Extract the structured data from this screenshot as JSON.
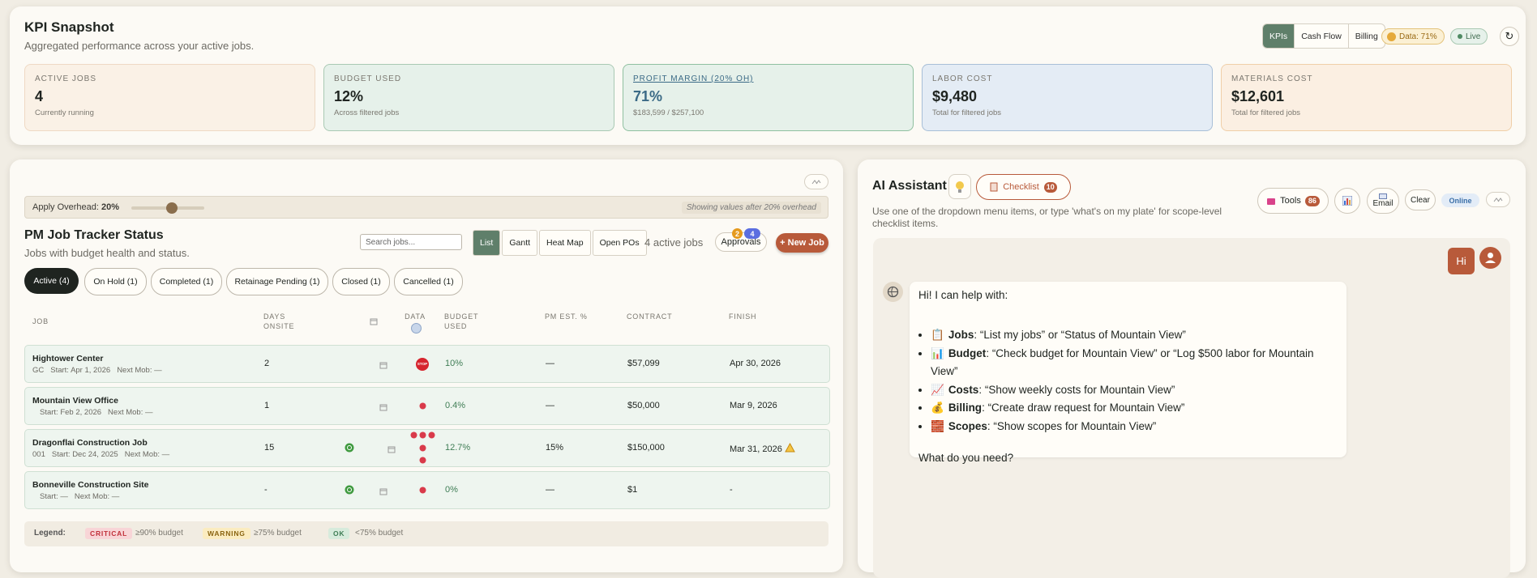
{
  "kpi_panel": {
    "title": "KPI Snapshot",
    "subtitle": "Aggregated performance across your active jobs.",
    "tabs": [
      "KPIs",
      "Cash Flow",
      "Billing"
    ],
    "data_badge": "Data: 71%",
    "live_badge": "Live",
    "refresh": "↻",
    "cards": [
      {
        "label": "ACTIVE JOBS",
        "value": "4",
        "note": "Currently running"
      },
      {
        "label": "BUDGET USED",
        "value": "12%",
        "note": "Across filtered jobs"
      },
      {
        "label": "PROFIT MARGIN (20% OH)",
        "value": "71%",
        "note": "$183,599 / $257,100"
      },
      {
        "label": "LABOR COST",
        "value": "$9,480",
        "note": "Total for filtered jobs"
      },
      {
        "label": "MATERIALS COST",
        "value": "$12,601",
        "note": "Total for filtered jobs"
      }
    ]
  },
  "job_tracker": {
    "overhead_label": "Apply Overhead:",
    "overhead_value": "20%",
    "overhead_note": "Showing values after 20% overhead",
    "title": "PM Job Tracker Status",
    "subtitle": "Jobs with budget health and status.",
    "search_placeholder": "Search jobs...",
    "views": [
      "List",
      "Gantt",
      "Heat Map",
      "Open POs"
    ],
    "active_count": "4 active jobs",
    "approvals": {
      "label": "Approvals",
      "badges": [
        "2",
        "4"
      ]
    },
    "new_job": "+ New Job",
    "filters": [
      "Active (4)",
      "On Hold (1)",
      "Completed (1)",
      "Retainage Pending (1)",
      "Closed (1)",
      "Cancelled (1)"
    ],
    "columns": [
      "JOB",
      "DAYS ONSITE",
      "DATA",
      "BUDGET USED",
      "PM EST. %",
      "CONTRACT",
      "FINISH"
    ],
    "rows": [
      {
        "name": "Hightower Center",
        "code": "GC",
        "start": "Start: Apr 1, 2026",
        "next_mob": "Next Mob: —",
        "days": "2",
        "status_icon": "STOP",
        "budget": "10%",
        "pm_est": "—",
        "contract": "$57,099",
        "finish": "Apr 30, 2026"
      },
      {
        "name": "Mountain View Office",
        "start": "Start: Feb 2, 2026",
        "next_mob": "Next Mob: —",
        "days": "1",
        "budget": "0.4%",
        "pm_est": "—",
        "contract": "$50,000",
        "finish": "Mar 9, 2026"
      },
      {
        "name": "Dragonflai Construction Job",
        "code": "001",
        "start": "Start: Dec 24, 2025",
        "next_mob": "Next Mob: —",
        "days": "15",
        "budget": "12.7%",
        "pm_est": "15%",
        "contract": "$150,000",
        "finish": "Mar 31, 2026"
      },
      {
        "name": "Bonneville Construction Site",
        "start": "Start: —",
        "next_mob": "Next Mob: —",
        "days": "-",
        "budget": "0%",
        "pm_est": "—",
        "contract": "$1",
        "finish": "-"
      }
    ],
    "legend": {
      "title": "Legend:",
      "items": [
        {
          "tag": "CRITICAL",
          "text": "≥90% budget"
        },
        {
          "tag": "WARNING",
          "text": "≥75% budget"
        },
        {
          "tag": "OK",
          "text": "<75% budget"
        }
      ]
    }
  },
  "assistant": {
    "title": "AI Assistant",
    "checklist": "Checklist",
    "checklist_count": "10",
    "tools": "Tools",
    "tools_count": "86",
    "email": "Email",
    "clear": "Clear",
    "status": "Online",
    "description": "Use one of the dropdown menu items, or type 'what's on my plate' for scope-level checklist items.",
    "user_message": "Hi",
    "bot_intro": "Hi! I can help with:",
    "bot_items": [
      {
        "icon": "📋",
        "label": "Jobs",
        "text": ": “List my jobs” or “Status of Mountain View”"
      },
      {
        "icon": "📊",
        "label": "Budget",
        "text": ": “Check budget for Mountain View” or “Log $500 labor for Mountain View”"
      },
      {
        "icon": "📈",
        "label": "Costs",
        "text": ": “Show weekly costs for Mountain View”"
      },
      {
        "icon": "💰",
        "label": "Billing",
        "text": ": “Create draw request for Mountain View”"
      },
      {
        "icon": "🧱",
        "label": "Scopes",
        "text": ": “Show scopes for Mountain View”"
      }
    ],
    "bot_outro": "What do you need?"
  }
}
